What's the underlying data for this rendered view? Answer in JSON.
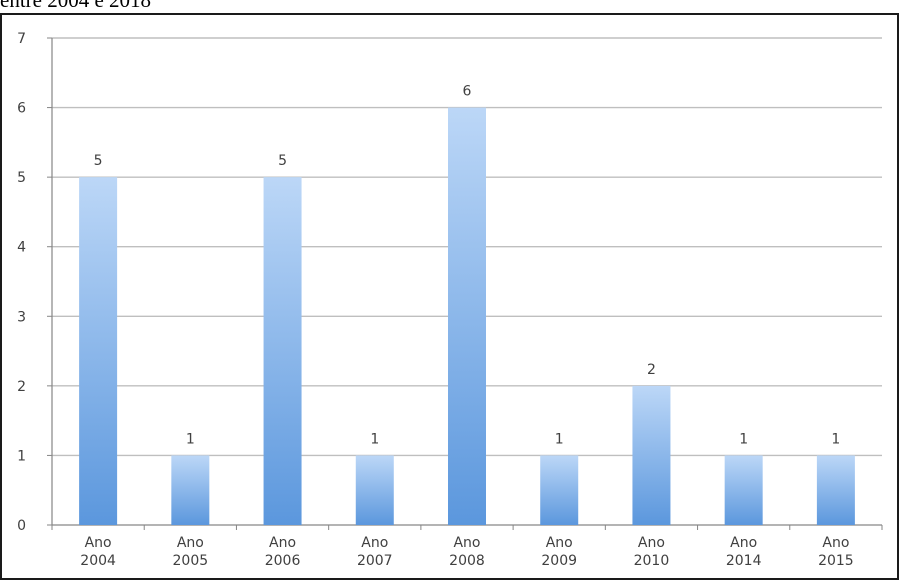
{
  "caption": "entre 2004 e 2018",
  "chart_data": {
    "type": "bar",
    "title": "",
    "xlabel": "",
    "ylabel": "",
    "categories": [
      [
        "Ano",
        "2004"
      ],
      [
        "Ano",
        "2005"
      ],
      [
        "Ano",
        "2006"
      ],
      [
        "Ano",
        "2007"
      ],
      [
        "Ano",
        "2008"
      ],
      [
        "Ano",
        "2009"
      ],
      [
        "Ano",
        "2010"
      ],
      [
        "Ano",
        "2014"
      ],
      [
        "Ano",
        "2015"
      ]
    ],
    "values": [
      5,
      1,
      5,
      1,
      6,
      1,
      2,
      1,
      1
    ],
    "data_labels": [
      "5",
      "1",
      "5",
      "1",
      "6",
      "1",
      "2",
      "1",
      "1"
    ],
    "ylim": [
      0,
      7
    ],
    "yticks": [
      "0",
      "1",
      "2",
      "3",
      "4",
      "5",
      "6",
      "7"
    ],
    "grid": true,
    "legend": "none",
    "colors": {
      "bar_top": "#bcd7f7",
      "bar_bottom": "#5b97dd",
      "grid": "#bfbfbf",
      "axis": "#868686",
      "text": "#404040"
    }
  }
}
